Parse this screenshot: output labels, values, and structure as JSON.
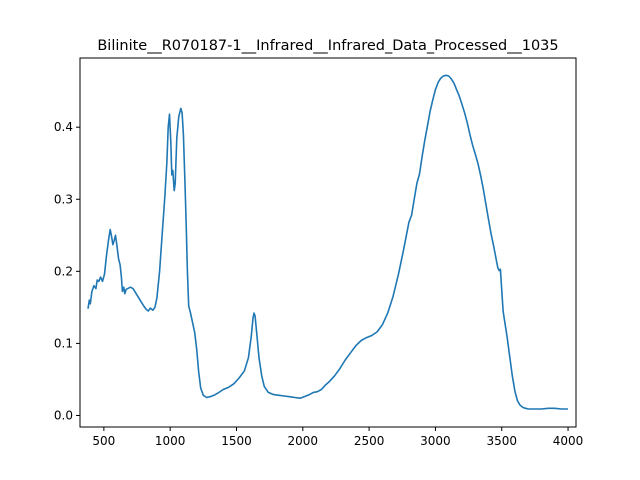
{
  "chart_data": {
    "type": "line",
    "title": "Bilinite__R070187-1__Infrared__Infrared_Data_Processed__1035",
    "xlabel": "",
    "ylabel": "",
    "xlim": [
      320,
      4060
    ],
    "ylim": [
      -0.016,
      0.496
    ],
    "x_ticks": [
      500,
      1000,
      1500,
      2000,
      2500,
      3000,
      3500,
      4000
    ],
    "y_ticks": [
      0.0,
      0.1,
      0.2,
      0.3,
      0.4
    ],
    "grid": false,
    "legend": "none",
    "series": [
      {
        "color": "#1f77b4",
        "points": [
          [
            380,
            0.148
          ],
          [
            390,
            0.16
          ],
          [
            398,
            0.155
          ],
          [
            410,
            0.172
          ],
          [
            425,
            0.18
          ],
          [
            440,
            0.176
          ],
          [
            450,
            0.188
          ],
          [
            462,
            0.186
          ],
          [
            475,
            0.192
          ],
          [
            490,
            0.186
          ],
          [
            505,
            0.196
          ],
          [
            520,
            0.222
          ],
          [
            535,
            0.243
          ],
          [
            548,
            0.258
          ],
          [
            558,
            0.248
          ],
          [
            568,
            0.237
          ],
          [
            578,
            0.243
          ],
          [
            588,
            0.25
          ],
          [
            598,
            0.236
          ],
          [
            610,
            0.218
          ],
          [
            622,
            0.209
          ],
          [
            632,
            0.192
          ],
          [
            640,
            0.172
          ],
          [
            650,
            0.178
          ],
          [
            658,
            0.169
          ],
          [
            668,
            0.175
          ],
          [
            680,
            0.176
          ],
          [
            700,
            0.178
          ],
          [
            720,
            0.176
          ],
          [
            740,
            0.17
          ],
          [
            760,
            0.164
          ],
          [
            780,
            0.158
          ],
          [
            800,
            0.152
          ],
          [
            820,
            0.147
          ],
          [
            835,
            0.145
          ],
          [
            850,
            0.149
          ],
          [
            870,
            0.146
          ],
          [
            885,
            0.15
          ],
          [
            900,
            0.163
          ],
          [
            920,
            0.2
          ],
          [
            940,
            0.252
          ],
          [
            960,
            0.305
          ],
          [
            975,
            0.352
          ],
          [
            985,
            0.4
          ],
          [
            995,
            0.418
          ],
          [
            1005,
            0.38
          ],
          [
            1012,
            0.334
          ],
          [
            1020,
            0.34
          ],
          [
            1030,
            0.312
          ],
          [
            1038,
            0.322
          ],
          [
            1050,
            0.385
          ],
          [
            1065,
            0.415
          ],
          [
            1080,
            0.426
          ],
          [
            1090,
            0.42
          ],
          [
            1100,
            0.39
          ],
          [
            1110,
            0.33
          ],
          [
            1120,
            0.27
          ],
          [
            1130,
            0.2
          ],
          [
            1140,
            0.152
          ],
          [
            1155,
            0.141
          ],
          [
            1170,
            0.128
          ],
          [
            1185,
            0.115
          ],
          [
            1200,
            0.092
          ],
          [
            1215,
            0.06
          ],
          [
            1230,
            0.038
          ],
          [
            1250,
            0.028
          ],
          [
            1275,
            0.025
          ],
          [
            1300,
            0.026
          ],
          [
            1330,
            0.028
          ],
          [
            1360,
            0.031
          ],
          [
            1400,
            0.036
          ],
          [
            1440,
            0.039
          ],
          [
            1480,
            0.044
          ],
          [
            1520,
            0.052
          ],
          [
            1560,
            0.062
          ],
          [
            1590,
            0.08
          ],
          [
            1610,
            0.108
          ],
          [
            1625,
            0.136
          ],
          [
            1632,
            0.142
          ],
          [
            1640,
            0.138
          ],
          [
            1655,
            0.11
          ],
          [
            1670,
            0.08
          ],
          [
            1690,
            0.055
          ],
          [
            1710,
            0.04
          ],
          [
            1740,
            0.032
          ],
          [
            1780,
            0.029
          ],
          [
            1820,
            0.028
          ],
          [
            1860,
            0.027
          ],
          [
            1900,
            0.026
          ],
          [
            1940,
            0.025
          ],
          [
            1980,
            0.024
          ],
          [
            2010,
            0.026
          ],
          [
            2050,
            0.029
          ],
          [
            2080,
            0.032
          ],
          [
            2110,
            0.033
          ],
          [
            2140,
            0.036
          ],
          [
            2170,
            0.042
          ],
          [
            2200,
            0.047
          ],
          [
            2240,
            0.055
          ],
          [
            2280,
            0.065
          ],
          [
            2320,
            0.077
          ],
          [
            2360,
            0.087
          ],
          [
            2400,
            0.097
          ],
          [
            2440,
            0.104
          ],
          [
            2480,
            0.108
          ],
          [
            2520,
            0.111
          ],
          [
            2560,
            0.116
          ],
          [
            2600,
            0.126
          ],
          [
            2640,
            0.142
          ],
          [
            2680,
            0.165
          ],
          [
            2720,
            0.195
          ],
          [
            2760,
            0.23
          ],
          [
            2800,
            0.268
          ],
          [
            2820,
            0.278
          ],
          [
            2840,
            0.3
          ],
          [
            2860,
            0.322
          ],
          [
            2880,
            0.335
          ],
          [
            2900,
            0.36
          ],
          [
            2920,
            0.382
          ],
          [
            2940,
            0.402
          ],
          [
            2960,
            0.422
          ],
          [
            2980,
            0.438
          ],
          [
            3000,
            0.452
          ],
          [
            3020,
            0.462
          ],
          [
            3040,
            0.468
          ],
          [
            3060,
            0.471
          ],
          [
            3080,
            0.472
          ],
          [
            3100,
            0.471
          ],
          [
            3120,
            0.467
          ],
          [
            3140,
            0.461
          ],
          [
            3160,
            0.452
          ],
          [
            3180,
            0.443
          ],
          [
            3200,
            0.432
          ],
          [
            3220,
            0.42
          ],
          [
            3240,
            0.406
          ],
          [
            3260,
            0.39
          ],
          [
            3280,
            0.375
          ],
          [
            3300,
            0.363
          ],
          [
            3320,
            0.35
          ],
          [
            3340,
            0.334
          ],
          [
            3360,
            0.315
          ],
          [
            3380,
            0.294
          ],
          [
            3400,
            0.272
          ],
          [
            3420,
            0.252
          ],
          [
            3440,
            0.234
          ],
          [
            3460,
            0.215
          ],
          [
            3470,
            0.205
          ],
          [
            3480,
            0.201
          ],
          [
            3490,
            0.203
          ],
          [
            3500,
            0.175
          ],
          [
            3510,
            0.145
          ],
          [
            3520,
            0.133
          ],
          [
            3540,
            0.11
          ],
          [
            3560,
            0.082
          ],
          [
            3580,
            0.055
          ],
          [
            3600,
            0.033
          ],
          [
            3620,
            0.02
          ],
          [
            3640,
            0.014
          ],
          [
            3660,
            0.011
          ],
          [
            3680,
            0.01
          ],
          [
            3700,
            0.009
          ],
          [
            3750,
            0.009
          ],
          [
            3800,
            0.009
          ],
          [
            3850,
            0.01
          ],
          [
            3900,
            0.01
          ],
          [
            3950,
            0.009
          ],
          [
            4000,
            0.009
          ]
        ]
      }
    ]
  }
}
